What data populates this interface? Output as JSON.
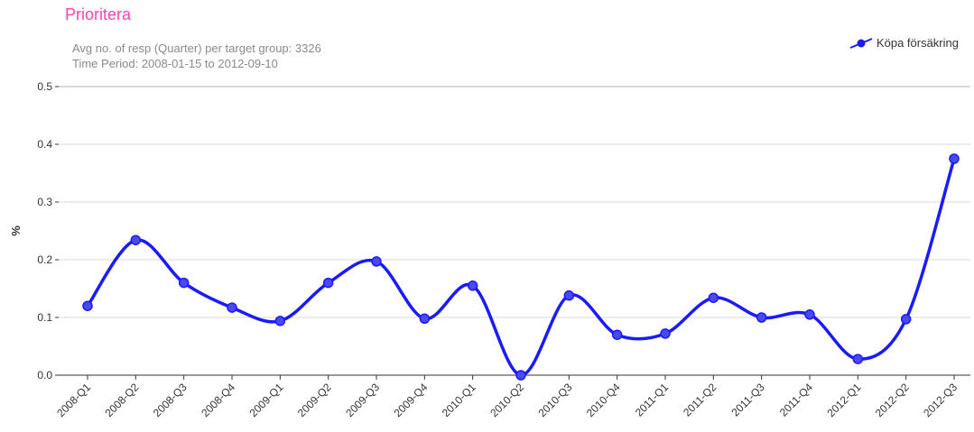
{
  "header": {
    "title": "Prioritera",
    "subtitle_line1": "Avg no. of resp (Quarter) per target group: 3326",
    "subtitle_line2": "Time Period: 2008-01-15 to 2012-09-10"
  },
  "colors": {
    "title": "#ff3fb4",
    "series": "#1a1aff",
    "grid": "#d9d9d9",
    "axis": "#333333"
  },
  "chart_data": {
    "type": "line",
    "title": "Prioritera",
    "ylabel": "%",
    "xlabel": "",
    "ylim": [
      0,
      0.5
    ],
    "yticks": [
      "0.0",
      "0.1",
      "0.2",
      "0.3",
      "0.4",
      "0.5"
    ],
    "grid": true,
    "legend_position": "top-right",
    "categories": [
      "2008-Q1",
      "2008-Q2",
      "2008-Q3",
      "2008-Q4",
      "2009-Q1",
      "2009-Q2",
      "2009-Q3",
      "2009-Q4",
      "2010-Q1",
      "2010-Q2",
      "2010-Q3",
      "2010-Q4",
      "2011-Q1",
      "2011-Q2",
      "2011-Q3",
      "2011-Q4",
      "2012-Q1",
      "2012-Q2",
      "2012-Q3"
    ],
    "series": [
      {
        "name": "Köpa försäkring",
        "values": [
          0.12,
          0.234,
          0.16,
          0.117,
          0.094,
          0.16,
          0.197,
          0.098,
          0.155,
          0.0,
          0.138,
          0.07,
          0.072,
          0.134,
          0.1,
          0.105,
          0.028,
          0.097,
          0.375
        ]
      }
    ]
  }
}
